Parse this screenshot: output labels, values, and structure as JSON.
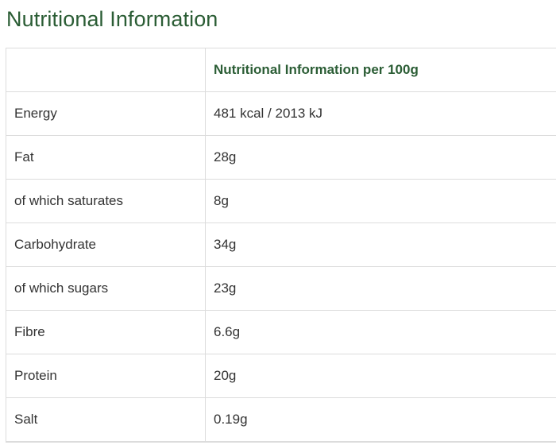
{
  "page": {
    "title": "Nutritional Information"
  },
  "table": {
    "header": {
      "col1": "",
      "col2": "Nutritional Information per 100g"
    },
    "rows": [
      {
        "label": "Energy",
        "value": "481 kcal / 2013 kJ"
      },
      {
        "label": "Fat",
        "value": "28g"
      },
      {
        "label": "of which saturates",
        "value": "8g"
      },
      {
        "label": "Carbohydrate",
        "value": "34g"
      },
      {
        "label": "of which sugars",
        "value": "23g"
      },
      {
        "label": "Fibre",
        "value": "6.6g"
      },
      {
        "label": "Protein",
        "value": "20g"
      },
      {
        "label": "Salt",
        "value": "0.19g"
      }
    ]
  },
  "colors": {
    "heading": "#2b5d35",
    "text": "#333333",
    "border": "#dcdcdc"
  }
}
